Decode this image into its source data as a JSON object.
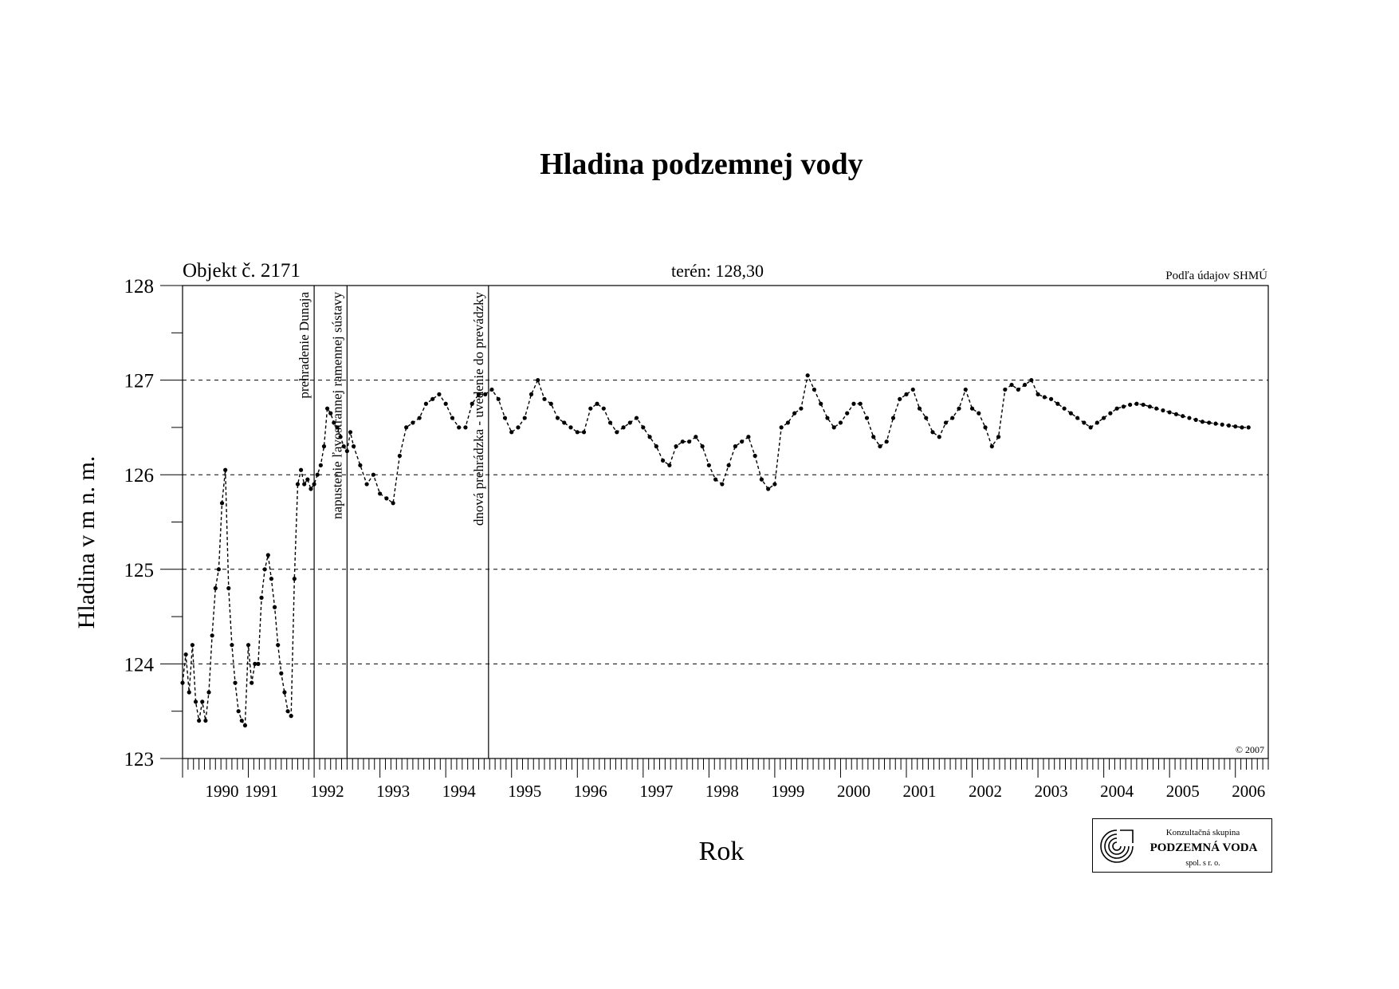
{
  "chart_data": {
    "type": "line",
    "title": "Hladina podzemnej vody",
    "object_label": "Objekt č. 2171",
    "terrain_label": "terén: 128,30",
    "source_label": "Podľa údajov SHMÚ",
    "copyright": "© 2007",
    "xlabel": "Rok",
    "ylabel": "Hladina v m n. m.",
    "xlim": [
      1990.0,
      2006.5
    ],
    "ylim": [
      123,
      128
    ],
    "y_ticks": [
      123,
      124,
      125,
      126,
      127,
      128
    ],
    "y_gridlines": [
      124,
      125,
      126,
      127
    ],
    "grid": "horizontal dashed",
    "x_tick_labels": [
      {
        "year": "1990",
        "pos": 1990.1
      },
      {
        "year": "1991",
        "pos": 1990.7
      },
      {
        "year": "1992",
        "pos": 1991.7
      },
      {
        "year": "1993",
        "pos": 1992.7
      },
      {
        "year": "1994",
        "pos": 1993.7
      },
      {
        "year": "1995",
        "pos": 1994.7
      },
      {
        "year": "1996",
        "pos": 1995.7
      },
      {
        "year": "1997",
        "pos": 1996.7
      },
      {
        "year": "1998",
        "pos": 1997.7
      },
      {
        "year": "1999",
        "pos": 1998.7
      },
      {
        "year": "2000",
        "pos": 1999.7
      },
      {
        "year": "2001",
        "pos": 2000.7
      },
      {
        "year": "2002",
        "pos": 2001.7
      },
      {
        "year": "2003",
        "pos": 2002.7
      },
      {
        "year": "2004",
        "pos": 2003.7
      },
      {
        "year": "2005",
        "pos": 2004.7
      },
      {
        "year": "2006",
        "pos": 2005.7
      }
    ],
    "events": [
      {
        "x": 1992.0,
        "label": "prehradenie Dunaja"
      },
      {
        "x": 1992.5,
        "label": "napustenie ľavostrannej ramennej sústavy"
      },
      {
        "x": 1994.65,
        "label": "dnová prehrádzka - uvedenie do prevádzky"
      }
    ],
    "series": [
      {
        "name": "",
        "color": "#000000",
        "x": [
          1990.0,
          1990.05,
          1990.1,
          1990.15,
          1990.2,
          1990.25,
          1990.3,
          1990.35,
          1990.4,
          1990.45,
          1990.5,
          1990.55,
          1990.6,
          1990.65,
          1990.7,
          1990.75,
          1990.8,
          1990.85,
          1990.9,
          1990.95,
          1991.0,
          1991.05,
          1991.1,
          1991.15,
          1991.2,
          1991.25,
          1991.3,
          1991.35,
          1991.4,
          1991.45,
          1991.5,
          1991.55,
          1991.6,
          1991.65,
          1991.7,
          1991.75,
          1991.8,
          1991.85,
          1991.9,
          1991.95,
          1992.0,
          1992.05,
          1992.1,
          1992.15,
          1992.2,
          1992.25,
          1992.3,
          1992.35,
          1992.4,
          1992.45,
          1992.5,
          1992.55,
          1992.6,
          1992.7,
          1992.8,
          1992.9,
          1993.0,
          1993.1,
          1993.2,
          1993.3,
          1993.4,
          1993.5,
          1993.6,
          1993.7,
          1993.8,
          1993.9,
          1994.0,
          1994.1,
          1994.2,
          1994.3,
          1994.4,
          1994.5,
          1994.6,
          1994.7,
          1994.8,
          1994.9,
          1995.0,
          1995.1,
          1995.2,
          1995.3,
          1995.4,
          1995.5,
          1995.6,
          1995.7,
          1995.8,
          1995.9,
          1996.0,
          1996.1,
          1996.2,
          1996.3,
          1996.4,
          1996.5,
          1996.6,
          1996.7,
          1996.8,
          1996.9,
          1997.0,
          1997.1,
          1997.2,
          1997.3,
          1997.4,
          1997.5,
          1997.6,
          1997.7,
          1997.8,
          1997.9,
          1998.0,
          1998.1,
          1998.2,
          1998.3,
          1998.4,
          1998.5,
          1998.6,
          1998.7,
          1998.8,
          1998.9,
          1999.0,
          1999.1,
          1999.2,
          1999.3,
          1999.4,
          1999.5,
          1999.6,
          1999.7,
          1999.8,
          1999.9,
          2000.0,
          2000.1,
          2000.2,
          2000.3,
          2000.4,
          2000.5,
          2000.6,
          2000.7,
          2000.8,
          2000.9,
          2001.0,
          2001.1,
          2001.2,
          2001.3,
          2001.4,
          2001.5,
          2001.6,
          2001.7,
          2001.8,
          2001.9,
          2002.0,
          2002.1,
          2002.2,
          2002.3,
          2002.4,
          2002.5,
          2002.6,
          2002.7,
          2002.8,
          2002.9,
          2003.0,
          2003.1,
          2003.2,
          2003.3,
          2003.4,
          2003.5,
          2003.6,
          2003.7,
          2003.8,
          2003.9,
          2004.0,
          2004.1,
          2004.2,
          2004.3,
          2004.4,
          2004.5,
          2004.6,
          2004.7,
          2004.8,
          2004.9,
          2005.0,
          2005.1,
          2005.2,
          2005.3,
          2005.4,
          2005.5,
          2005.6,
          2005.7,
          2005.8,
          2005.9,
          2006.0,
          2006.1,
          2006.2
        ],
        "y": [
          123.8,
          124.1,
          123.7,
          124.2,
          123.6,
          123.4,
          123.6,
          123.4,
          123.7,
          124.3,
          124.8,
          125.0,
          125.7,
          126.05,
          124.8,
          124.2,
          123.8,
          123.5,
          123.4,
          123.35,
          124.2,
          123.8,
          124.0,
          124.0,
          124.7,
          125.0,
          125.15,
          124.9,
          124.6,
          124.2,
          123.9,
          123.7,
          123.5,
          123.45,
          124.9,
          125.9,
          126.05,
          125.9,
          125.95,
          125.85,
          125.9,
          126.0,
          126.1,
          126.3,
          126.7,
          126.65,
          126.55,
          126.5,
          126.4,
          126.3,
          126.25,
          126.45,
          126.3,
          126.1,
          125.9,
          126.0,
          125.8,
          125.75,
          125.7,
          126.2,
          126.5,
          126.55,
          126.6,
          126.75,
          126.8,
          126.85,
          126.75,
          126.6,
          126.5,
          126.5,
          126.75,
          126.85,
          126.85,
          126.9,
          126.8,
          126.6,
          126.45,
          126.5,
          126.6,
          126.85,
          127.0,
          126.8,
          126.75,
          126.6,
          126.55,
          126.5,
          126.45,
          126.45,
          126.7,
          126.75,
          126.7,
          126.55,
          126.45,
          126.5,
          126.55,
          126.6,
          126.5,
          126.4,
          126.3,
          126.15,
          126.1,
          126.3,
          126.35,
          126.35,
          126.4,
          126.3,
          126.1,
          125.95,
          125.9,
          126.1,
          126.3,
          126.35,
          126.4,
          126.2,
          125.95,
          125.85,
          125.9,
          126.5,
          126.55,
          126.65,
          126.7,
          127.05,
          126.9,
          126.75,
          126.6,
          126.5,
          126.55,
          126.65,
          126.75,
          126.75,
          126.6,
          126.4,
          126.3,
          126.35,
          126.6,
          126.8,
          126.85,
          126.9,
          126.7,
          126.6,
          126.45,
          126.4,
          126.55,
          126.6,
          126.7,
          126.9,
          126.7,
          126.65,
          126.5,
          126.3,
          126.4,
          126.9,
          126.95,
          126.9,
          126.95,
          127.0,
          126.85,
          126.82,
          126.8,
          126.75,
          126.7,
          126.65,
          126.6,
          126.55,
          126.5,
          126.55,
          126.6,
          126.65,
          126.7,
          126.72,
          126.74,
          126.75,
          126.74,
          126.72,
          126.7,
          126.68,
          126.66,
          126.64,
          126.62,
          126.6,
          126.58,
          126.56,
          126.55,
          126.54,
          126.53,
          126.52,
          126.51,
          126.5,
          126.5
        ]
      }
    ]
  },
  "logo": {
    "line1": "Konzultačná skupina",
    "line2": "PODZEMNÁ VODA",
    "line3": "spol. s r. o."
  }
}
